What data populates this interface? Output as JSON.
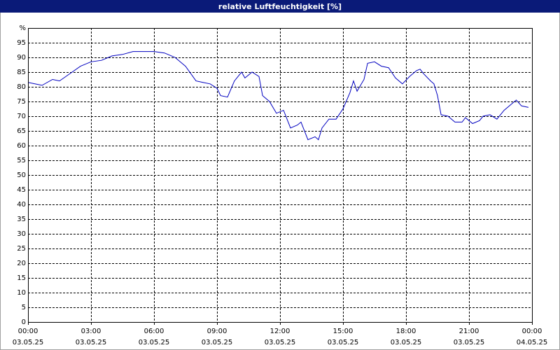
{
  "chart_data": {
    "type": "line",
    "title": "relative Luftfeuchtigkeit [%]",
    "x": [
      0,
      0.67,
      1.17,
      1.5,
      2,
      2.5,
      3,
      3.5,
      4,
      4.5,
      5,
      6,
      6.5,
      7,
      7.5,
      8,
      8.33,
      8.67,
      9,
      9.17,
      9.5,
      9.83,
      10.17,
      10.33,
      10.67,
      11,
      11.17,
      11.5,
      11.83,
      12.17,
      12.5,
      12.83,
      13,
      13.33,
      13.67,
      13.83,
      14,
      14.33,
      14.67,
      15,
      15.33,
      15.5,
      15.67,
      16,
      16.17,
      16.5,
      16.83,
      17.17,
      17.5,
      17.83,
      18.17,
      18.5,
      18.67,
      18.83,
      19.17,
      19.33,
      19.5,
      19.67,
      20,
      20.33,
      20.67,
      20.83,
      21.17,
      21.5,
      21.67,
      22,
      22.33,
      22.67,
      23,
      23.25,
      23.5,
      23.83
    ],
    "series": [
      {
        "name": "relative Luftfeuchtigkeit",
        "color": "#0000c0",
        "values": [
          81.5,
          80.5,
          82.5,
          82,
          84.5,
          87,
          88.5,
          89,
          90.5,
          91,
          92,
          92,
          91.5,
          90,
          87,
          82,
          81.5,
          81,
          79.5,
          77,
          76.5,
          82,
          85,
          83,
          85,
          83.5,
          77,
          75,
          71,
          72,
          66,
          67,
          68,
          62,
          63,
          62,
          66,
          69,
          69,
          72.5,
          78,
          82,
          78.5,
          82.5,
          88,
          88.5,
          87,
          86.5,
          83,
          81,
          83.5,
          85.5,
          86,
          84.5,
          82,
          81,
          77,
          70.5,
          70,
          68,
          68,
          69.5,
          67.5,
          68.5,
          70,
          70.5,
          69,
          72,
          74,
          75.5,
          73.5,
          73
        ]
      }
    ],
    "xlim": [
      0,
      24
    ],
    "xticks": [
      {
        "value": 0,
        "label": "00:00"
      },
      {
        "value": 3,
        "label": "03:00"
      },
      {
        "value": 6,
        "label": "06:00"
      },
      {
        "value": 9,
        "label": "09:00"
      },
      {
        "value": 12,
        "label": "12:00"
      },
      {
        "value": 15,
        "label": "15:00"
      },
      {
        "value": 18,
        "label": "18:00"
      },
      {
        "value": 21,
        "label": "21:00"
      },
      {
        "value": 24,
        "label": "00:00"
      }
    ],
    "xtick_dates": [
      "03.05.25",
      "03.05.25",
      "03.05.25",
      "03.05.25",
      "03.05.25",
      "03.05.25",
      "03.05.25",
      "03.05.25",
      "04.05.25"
    ],
    "ylim": [
      0,
      100
    ],
    "yticks": [
      0,
      5,
      10,
      15,
      20,
      25,
      30,
      35,
      40,
      45,
      50,
      55,
      60,
      65,
      70,
      75,
      80,
      85,
      90,
      95,
      {
        "value": 100,
        "label": "%"
      }
    ],
    "grid": true
  }
}
